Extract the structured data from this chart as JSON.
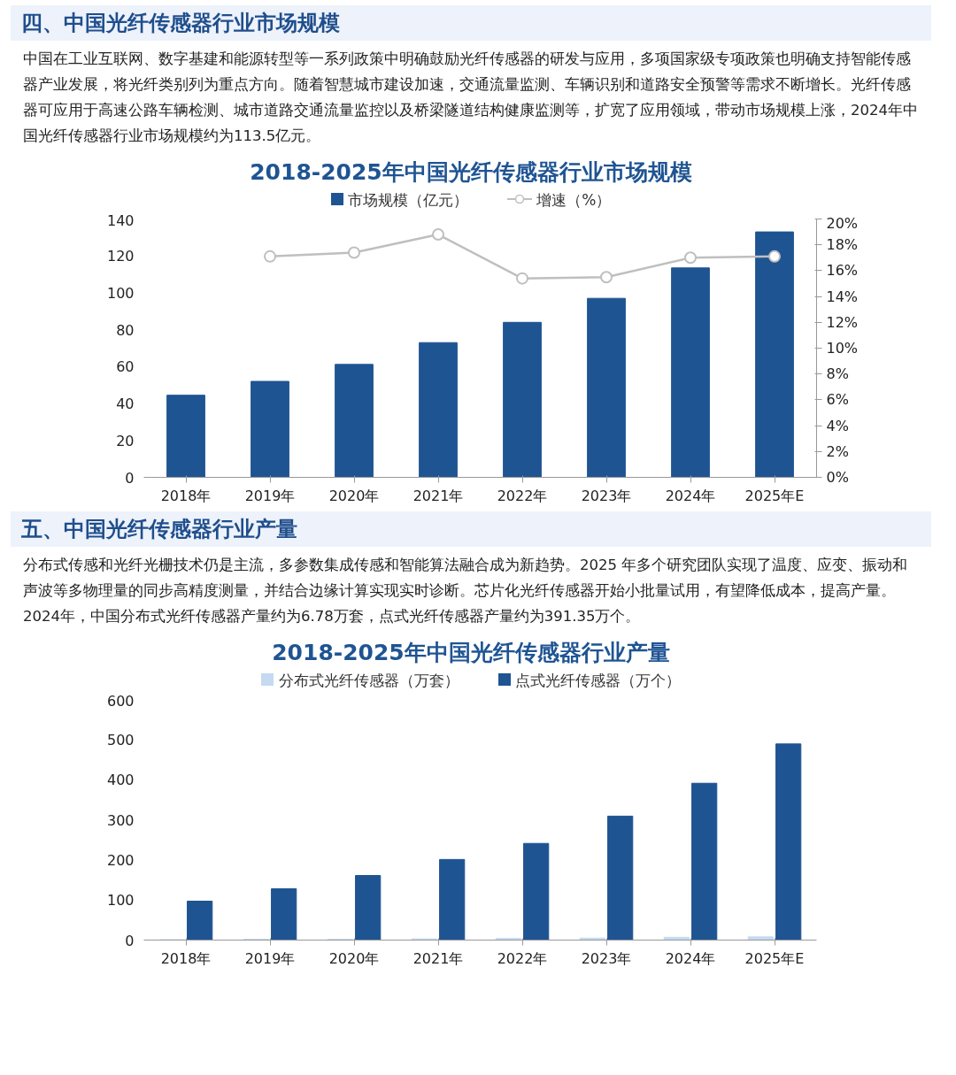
{
  "chart_data": [
    {
      "type": "bar",
      "title": "2018-2025年中国光纤传感器行业市场规模",
      "annotations": [
        "四、中国光纤传感器行业市场规模",
        "中国在工业互联网、数字基建和能源转型等一系列政策中明确鼓励光纤传感器的研发与应用，多项国家级专项政策也明确支持智能传感器产业发展，将光纤类别列为重点方向。随着智慧城市建设加速，交通流量监测、车辆识别和道路安全预警等需求不断增长。光纤传感器可应用于高速公路车辆检测、城市道路交通流量监控以及桥梁隧道结构健康监测等，扩宽了应用领域，带动市场规模上涨，2024年中国光纤传感器行业市场规模约为113.5亿元。"
      ],
      "categories": [
        "2018年",
        "2019年",
        "2020年",
        "2021年",
        "2022年",
        "2023年",
        "2024年",
        "2025年E"
      ],
      "series": [
        {
          "name": "市场规模（亿元）",
          "color": "#1f5493",
          "values": [
            44.5,
            52,
            61.2,
            73,
            84,
            97,
            113.5,
            133
          ]
        },
        {
          "name": "增速（%）",
          "type": "line",
          "axis": "y2",
          "color": "#bfbfbf",
          "marker": "circle",
          "values": [
            null,
            17.1,
            17.4,
            18.8,
            15.4,
            15.5,
            17.0,
            17.1
          ]
        }
      ],
      "ylim": [
        0,
        140
      ],
      "yticks": [
        0,
        20,
        40,
        60,
        80,
        100,
        120,
        140
      ],
      "y2lim": [
        0,
        20
      ],
      "y2ticks": [
        {
          "value": 0,
          "label": "0%"
        },
        {
          "value": 2,
          "label": "2%"
        },
        {
          "value": 4,
          "label": "4%"
        },
        {
          "value": 6,
          "label": "6%"
        },
        {
          "value": 8,
          "label": "8%"
        },
        {
          "value": 10,
          "label": "10%"
        },
        {
          "value": 12,
          "label": "12%"
        },
        {
          "value": 14,
          "label": "14%"
        },
        {
          "value": 16,
          "label": "16%"
        },
        {
          "value": 18,
          "label": "18%"
        },
        {
          "value": 20,
          "label": "20%"
        }
      ],
      "legend": "top",
      "grid": false
    },
    {
      "type": "bar",
      "title": "2018-2025年中国光纤传感器行业产量",
      "annotations": [
        "五、中国光纤传感器行业产量",
        "分布式传感和光纤光栅技术仍是主流，多参数集成传感和智能算法融合成为新趋势。2025 年多个研究团队实现了温度、应变、振动和声波等多物理量的同步高精度测量，并结合边缘计算实现实时诊断。芯片化光纤传感器开始小批量试用，有望降低成本，提高产量。2024年，中国分布式光纤传感器产量约为6.78万套，点式光纤传感器产量约为391.35万个。"
      ],
      "categories": [
        "2018年",
        "2019年",
        "2020年",
        "2021年",
        "2022年",
        "2023年",
        "2024年",
        "2025年E"
      ],
      "series": [
        {
          "name": "分布式光纤传感器（万套）",
          "color": "#c5d9f1",
          "values": [
            1,
            2,
            2,
            3,
            4,
            5,
            7,
            8
          ]
        },
        {
          "name": "点式光纤传感器（万个）",
          "color": "#1f5493",
          "values": [
            97,
            128,
            161,
            201,
            241,
            309,
            391,
            489
          ]
        }
      ],
      "ylim": [
        0,
        600
      ],
      "yticks": [
        0,
        100,
        200,
        300,
        400,
        500,
        600
      ],
      "legend": "top",
      "grid": false
    }
  ]
}
